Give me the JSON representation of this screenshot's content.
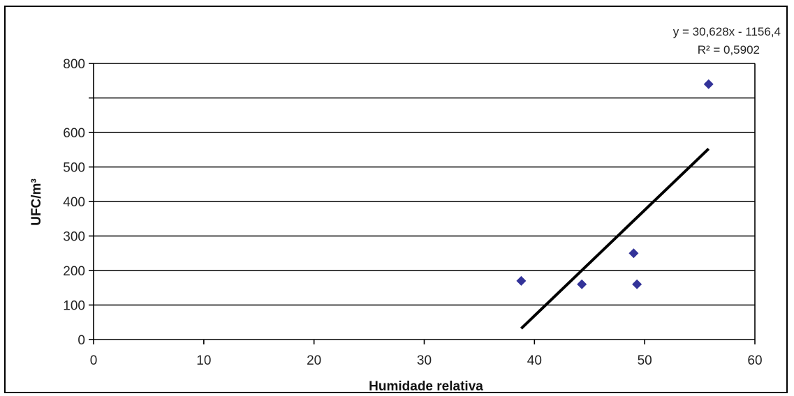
{
  "chart_data": {
    "type": "scatter",
    "xlabel": "Humidade relativa",
    "ylabel": "UFC/m³",
    "xlim": [
      0,
      60
    ],
    "ylim": [
      0,
      800
    ],
    "x_ticks": [
      0,
      10,
      20,
      30,
      40,
      50,
      60
    ],
    "y_ticks": [
      0,
      100,
      200,
      300,
      400,
      500,
      600,
      800
    ],
    "y_gridlines": [
      100,
      200,
      300,
      400,
      500,
      600,
      700,
      800
    ],
    "grid": true,
    "marker_color": "#333399",
    "trendline_color": "#000000",
    "points": [
      {
        "x": 38.8,
        "y": 170
      },
      {
        "x": 44.3,
        "y": 160
      },
      {
        "x": 49.0,
        "y": 250
      },
      {
        "x": 49.3,
        "y": 160
      },
      {
        "x": 55.8,
        "y": 740
      }
    ],
    "trendline": {
      "slope": 30.628,
      "intercept": -1156.4,
      "x_range": [
        38.8,
        55.8
      ]
    },
    "equation_label": "y = 30,628x - 1156,4",
    "r2_label": "R² = 0,5902"
  }
}
